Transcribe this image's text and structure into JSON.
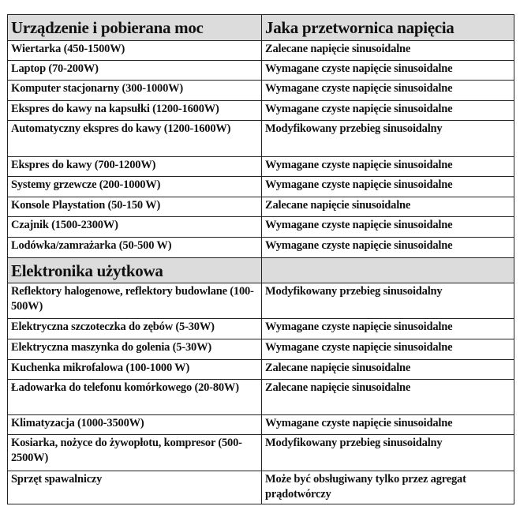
{
  "header": {
    "col1": "Urządzenie i pobierana moc",
    "col2": "Jaka przetwornica napięcia"
  },
  "rows1": [
    {
      "device": "Wiertarka (450-1500W)",
      "inverter": "Zalecane napięcie sinusoidalne"
    },
    {
      "device": "Laptop (70-200W)",
      "inverter": "Wymagane czyste napięcie sinusoidalne"
    },
    {
      "device": "Komputer stacjonarny (300-1000W)",
      "inverter": "Wymagane czyste napięcie sinusoidalne"
    },
    {
      "device": "Ekspres do kawy na kapsułki (1200-1600W)",
      "inverter": "Wymagane czyste napięcie sinusoidalne"
    },
    {
      "device": "Automatyczny ekspres do kawy (1200-1600W)",
      "inverter": "Modyfikowany przebieg sinusoidalny"
    },
    {
      "device": "Ekspres do kawy (700-1200W)",
      "inverter": "Wymagane czyste napięcie sinusoidalne"
    },
    {
      "device": "Systemy grzewcze (200-1000W)",
      "inverter": "Wymagane czyste napięcie sinusoidalne"
    },
    {
      "device": "Konsole Playstation (50-150 W)",
      "inverter": "Zalecane napięcie sinusoidalne"
    },
    {
      "device": "Czajnik (1500-2300W)",
      "inverter": "Wymagane czyste napięcie sinusoidalne"
    },
    {
      "device": "Lodówka/zamrażarka (50-500 W)",
      "inverter": "Wymagane czyste napięcie sinusoidalne"
    }
  ],
  "section": {
    "title": "Elektronika użytkowa"
  },
  "rows2": [
    {
      "device": "Reflektory halogenowe, reflektory budowlane (100-500W)",
      "inverter": "Modyfikowany przebieg sinusoidalny"
    },
    {
      "device": "Elektryczna szczoteczka do zębów (5-30W)",
      "inverter": "Wymagane czyste napięcie sinusoidalne"
    },
    {
      "device": "Elektryczna maszynka do golenia (5-30W)",
      "inverter": "Wymagane czyste napięcie sinusoidalne"
    },
    {
      "device": "Kuchenka mikrofalowa (100-1000 W)",
      "inverter": "Zalecane napięcie sinusoidalne"
    },
    {
      "device": "Ładowarka do telefonu komórkowego (20-80W)",
      "inverter": "Zalecane napięcie sinusoidalne"
    },
    {
      "device": "Klimatyzacja (1000-3500W)",
      "inverter": "Wymagane czyste napięcie sinusoidalne"
    },
    {
      "device": "Kosiarka, nożyce do żywopłotu, kompresor (500-2500W)",
      "inverter": "Modyfikowany przebieg sinusoidalny"
    },
    {
      "device": "Sprzęt spawalniczy",
      "inverter": "Może być obsługiwany tylko przez agregat prądotwórczy"
    }
  ]
}
